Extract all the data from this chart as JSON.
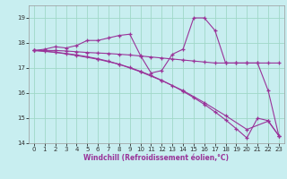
{
  "xlabel": "Windchill (Refroidissement éolien,°C)",
  "background_color": "#c8eef0",
  "grid_color": "#a0d8c8",
  "line_color": "#993399",
  "xlim": [
    -0.5,
    23.5
  ],
  "ylim": [
    14.0,
    19.5
  ],
  "yticks": [
    14,
    15,
    16,
    17,
    18,
    19
  ],
  "xticks": [
    0,
    1,
    2,
    3,
    4,
    5,
    6,
    7,
    8,
    9,
    10,
    11,
    12,
    13,
    14,
    15,
    16,
    17,
    18,
    19,
    20,
    21,
    22,
    23
  ],
  "series": [
    {
      "x": [
        0,
        1,
        2,
        3,
        4,
        5,
        6,
        7,
        8,
        9,
        10,
        11,
        12,
        13,
        14,
        15,
        16,
        17,
        18,
        19,
        20,
        21,
        22,
        23
      ],
      "y": [
        17.7,
        17.75,
        17.85,
        17.8,
        17.9,
        18.1,
        18.1,
        18.2,
        18.3,
        18.35,
        17.5,
        16.8,
        16.9,
        17.55,
        17.75,
        19.0,
        19.0,
        18.5,
        17.2,
        17.2,
        17.2,
        17.2,
        16.1,
        14.3
      ]
    },
    {
      "x": [
        0,
        1,
        2,
        3,
        4,
        5,
        6,
        7,
        8,
        9,
        10,
        11,
        12,
        13,
        14,
        15,
        16,
        17,
        18,
        19,
        20,
        21,
        22,
        23
      ],
      "y": [
        17.7,
        17.7,
        17.7,
        17.68,
        17.65,
        17.62,
        17.6,
        17.58,
        17.55,
        17.52,
        17.48,
        17.44,
        17.4,
        17.36,
        17.32,
        17.28,
        17.24,
        17.2,
        17.2,
        17.2,
        17.2,
        17.2,
        17.2,
        17.2
      ]
    },
    {
      "x": [
        0,
        1,
        2,
        3,
        4,
        5,
        6,
        7,
        8,
        9,
        10,
        11,
        12,
        13,
        14,
        15,
        16,
        17,
        18,
        19,
        20,
        21,
        22,
        23
      ],
      "y": [
        17.7,
        17.67,
        17.63,
        17.58,
        17.52,
        17.45,
        17.37,
        17.27,
        17.15,
        17.02,
        16.87,
        16.7,
        16.51,
        16.3,
        16.07,
        15.82,
        15.55,
        15.25,
        14.93,
        14.58,
        14.21,
        15.0,
        14.9,
        14.3
      ]
    },
    {
      "x": [
        0,
        2,
        4,
        6,
        8,
        10,
        12,
        14,
        16,
        18,
        20,
        22,
        23
      ],
      "y": [
        17.7,
        17.63,
        17.5,
        17.35,
        17.15,
        16.85,
        16.5,
        16.1,
        15.62,
        15.1,
        14.55,
        14.88,
        14.3
      ]
    }
  ]
}
